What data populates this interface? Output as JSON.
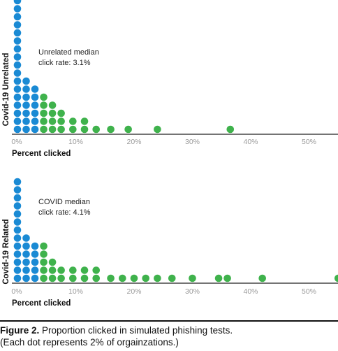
{
  "chart_data": [
    {
      "type": "scatter",
      "ylabel": "Covid-19 Unrelated",
      "xlabel": "Percent clicked",
      "x_ticks": [
        "0%",
        "10%",
        "20%",
        "30%",
        "40%",
        "50%"
      ],
      "xlim": [
        0,
        55
      ],
      "annotation": [
        "Unrelated median",
        "click rate: 3.1%"
      ],
      "median": 3.1,
      "colors": {
        "below_median": "#1a8ad4",
        "above_median": "#3fb24c"
      },
      "dot_unit_percent": 2,
      "columns": [
        {
          "x": 0,
          "count": 18
        },
        {
          "x": 1.5,
          "count": 7
        },
        {
          "x": 3,
          "count": 6
        },
        {
          "x": 4.5,
          "count": 5
        },
        {
          "x": 6,
          "count": 4
        },
        {
          "x": 7.5,
          "count": 3
        },
        {
          "x": 9.5,
          "count": 2
        },
        {
          "x": 11.5,
          "count": 2
        },
        {
          "x": 13.5,
          "count": 1
        },
        {
          "x": 16,
          "count": 1
        },
        {
          "x": 19,
          "count": 1
        },
        {
          "x": 24,
          "count": 1
        },
        {
          "x": 36.5,
          "count": 1
        }
      ]
    },
    {
      "type": "scatter",
      "ylabel": "Covid-19 Related",
      "xlabel": "Percent clicked",
      "x_ticks": [
        "0%",
        "10%",
        "20%",
        "30%",
        "40%",
        "50%"
      ],
      "xlim": [
        0,
        55
      ],
      "annotation": [
        "COVID median",
        "click rate: 4.1%"
      ],
      "median": 4.1,
      "colors": {
        "below_median": "#1a8ad4",
        "above_median": "#3fb24c"
      },
      "dot_unit_percent": 2,
      "columns": [
        {
          "x": 0,
          "count": 13
        },
        {
          "x": 1.5,
          "count": 6
        },
        {
          "x": 3,
          "count": 5
        },
        {
          "x": 4.5,
          "count": 5
        },
        {
          "x": 6,
          "count": 3
        },
        {
          "x": 7.5,
          "count": 2
        },
        {
          "x": 9.5,
          "count": 2
        },
        {
          "x": 11.5,
          "count": 2
        },
        {
          "x": 13.5,
          "count": 2
        },
        {
          "x": 16,
          "count": 1
        },
        {
          "x": 18,
          "count": 1
        },
        {
          "x": 20,
          "count": 1
        },
        {
          "x": 22,
          "count": 1
        },
        {
          "x": 24,
          "count": 1
        },
        {
          "x": 26.5,
          "count": 1
        },
        {
          "x": 30,
          "count": 1
        },
        {
          "x": 34.5,
          "count": 1
        },
        {
          "x": 36,
          "count": 1
        },
        {
          "x": 42,
          "count": 1
        },
        {
          "x": 55,
          "count": 1
        }
      ]
    }
  ],
  "caption": {
    "figure_label": "Figure 2.",
    "text": " Proportion clicked in simulated phishing tests.",
    "line2": "(Each dot represents 2% of orgainzations.)"
  }
}
